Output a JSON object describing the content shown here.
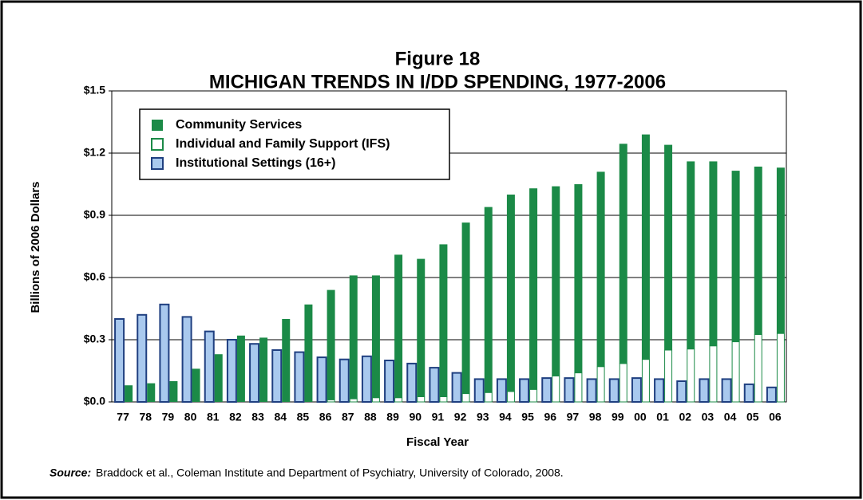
{
  "chart_data": {
    "type": "bar",
    "title": "Figure 18",
    "subtitle": "MICHIGAN TRENDS IN I/DD SPENDING, 1977-2006",
    "y_label": "Billions of 2006 Dollars",
    "x_label": "Fiscal Year",
    "source_label": "Source:",
    "source": "Braddock et al., Coleman Institute and Department of Psychiatry, University of Colorado, 2008.",
    "categories": [
      "77",
      "78",
      "79",
      "80",
      "81",
      "82",
      "83",
      "84",
      "85",
      "86",
      "87",
      "88",
      "89",
      "90",
      "91",
      "92",
      "93",
      "94",
      "95",
      "96",
      "97",
      "98",
      "99",
      "00",
      "01",
      "02",
      "03",
      "04",
      "05",
      "06"
    ],
    "series": [
      {
        "name": "Community Services",
        "color": "#1b8a47",
        "values": [
          0.08,
          0.09,
          0.1,
          0.16,
          0.23,
          0.32,
          0.31,
          0.4,
          0.47,
          0.53,
          0.595,
          0.59,
          0.69,
          0.665,
          0.735,
          0.825,
          0.895,
          0.95,
          0.97,
          0.915,
          0.91,
          0.94,
          1.06,
          1.085,
          0.99,
          0.905,
          0.89,
          0.825,
          0.81,
          0.8
        ]
      },
      {
        "name": "Individual and Family Support (IFS)",
        "color": "#ffffff",
        "values": [
          0,
          0,
          0,
          0,
          0,
          0,
          0,
          0,
          0,
          0.01,
          0.015,
          0.02,
          0.02,
          0.025,
          0.025,
          0.04,
          0.045,
          0.05,
          0.06,
          0.125,
          0.14,
          0.17,
          0.185,
          0.205,
          0.25,
          0.255,
          0.27,
          0.29,
          0.325,
          0.33
        ]
      },
      {
        "name": "Institutional Settings (16+)",
        "color": "#a9c9ee",
        "values": [
          0.4,
          0.42,
          0.47,
          0.41,
          0.34,
          0.3,
          0.28,
          0.25,
          0.24,
          0.215,
          0.205,
          0.22,
          0.2,
          0.185,
          0.165,
          0.14,
          0.11,
          0.11,
          0.11,
          0.115,
          0.115,
          0.11,
          0.11,
          0.115,
          0.11,
          0.1,
          0.11,
          0.11,
          0.085,
          0.07
        ]
      }
    ],
    "ylim": [
      0,
      1.5
    ],
    "yticks": [
      {
        "value": 0,
        "label": "$0.0"
      },
      {
        "value": 0.3,
        "label": "$0.3"
      },
      {
        "value": 0.6,
        "label": "$0.6"
      },
      {
        "value": 0.9,
        "label": "$0.9"
      },
      {
        "value": 1.2,
        "label": "$1.2"
      },
      {
        "value": 1.5,
        "label": "$1.5"
      }
    ],
    "grid": true,
    "legend": "upper left"
  }
}
